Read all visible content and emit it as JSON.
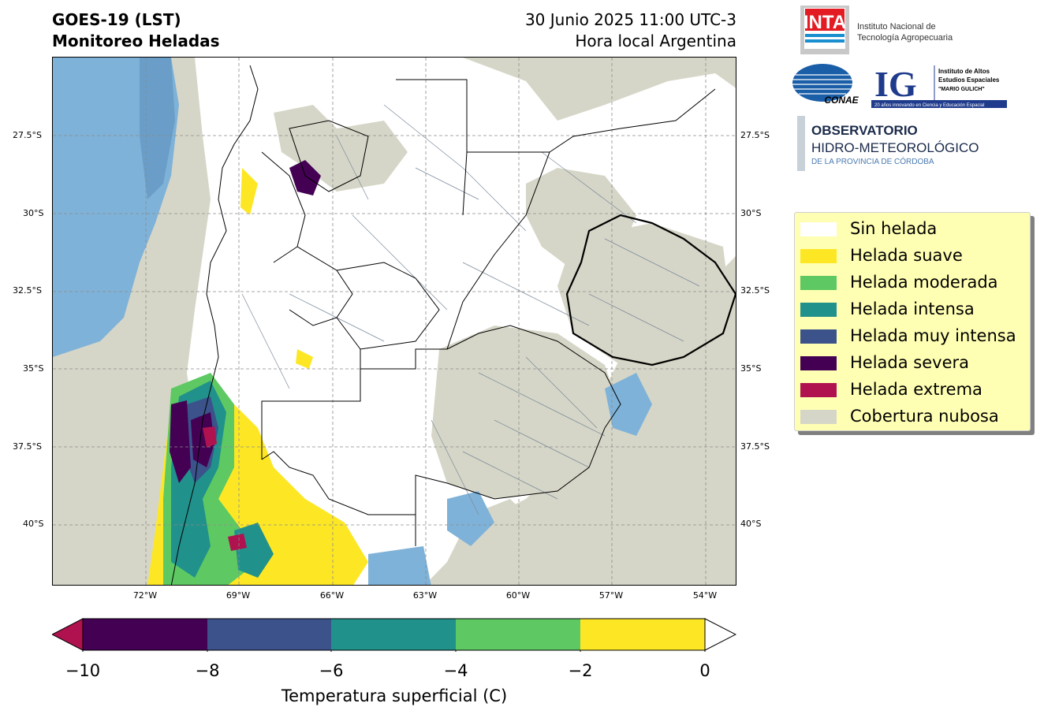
{
  "header": {
    "left_line1": "GOES-19 (LST)",
    "left_line2": "Monitoreo Heladas",
    "right_line1": "30 Junio 2025 11:00 UTC-3",
    "right_line2": "Hora local Argentina"
  },
  "map": {
    "lat_labels": [
      "27.5°S",
      "30°S",
      "32.5°S",
      "35°S",
      "37.5°S",
      "40°S"
    ],
    "lon_labels": [
      "72°W",
      "69°W",
      "66°W",
      "63°W",
      "60°W",
      "57°W",
      "54°W"
    ],
    "gridlines": true
  },
  "logos": {
    "inta_mark": "INTA",
    "inta_name_line1": "Instituto Nacional de",
    "inta_name_line2": "Tecnología Agropecuaria",
    "conae_mark": "CONAE",
    "ig_mark": "IG",
    "ig_line1": "Instituto de Altos",
    "ig_line2": "Estudios Espaciales",
    "ig_line3": "\"MARIO GULICH\"",
    "ig_tagline": "20 años innovando en Ciencia y Educación Espacial",
    "obs_line1": "OBSERVATORIO",
    "obs_line2": "HIDRO-METEOROLÓGICO",
    "obs_line3": "DE LA PROVINCIA DE CÓRDOBA"
  },
  "legend": {
    "items": [
      {
        "label": "Sin helada",
        "color": "#ffffff"
      },
      {
        "label": "Helada suave",
        "color": "#fde725"
      },
      {
        "label": "Helada moderada",
        "color": "#5ec962"
      },
      {
        "label": "Helada intensa",
        "color": "#21918c"
      },
      {
        "label": "Helada muy intensa",
        "color": "#3b528b"
      },
      {
        "label": "Helada severa",
        "color": "#440154"
      },
      {
        "label": "Helada extrema",
        "color": "#b0124f"
      },
      {
        "label": "Cobertura nubosa",
        "color": "#d6d6c8"
      }
    ]
  },
  "colorbar": {
    "ticks": [
      "−10",
      "−8",
      "−6",
      "−4",
      "−2",
      "0"
    ],
    "segments": [
      "#440154",
      "#3b528b",
      "#21918c",
      "#5ec962",
      "#fde725"
    ],
    "under_color": "#b0124f",
    "over_color": "#ffffff",
    "title": "Temperatura superficial (C)"
  },
  "colors": {
    "cloud": "#d6d6c8",
    "water": "#7fb2d8",
    "water_dark": "#6a9ec8"
  }
}
